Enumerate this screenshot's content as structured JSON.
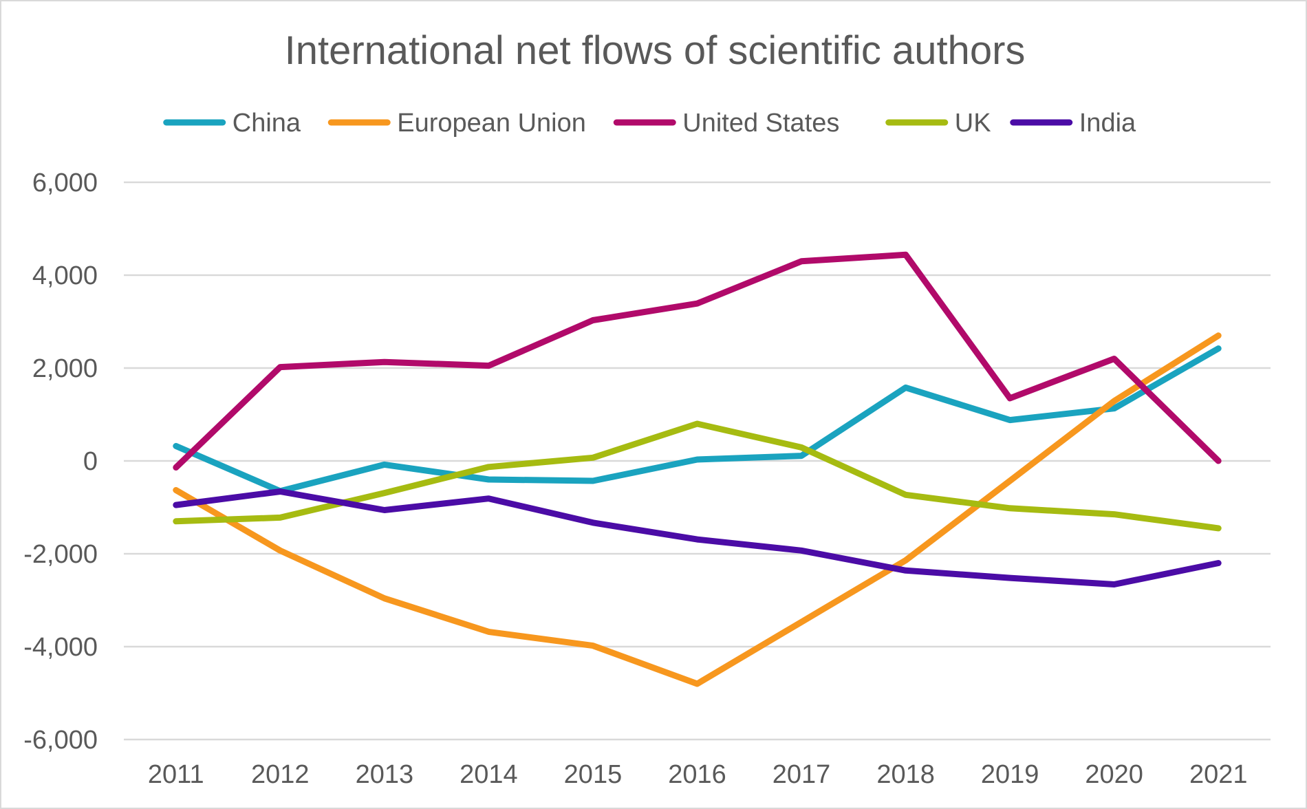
{
  "chart_data": {
    "type": "line",
    "title": "International net flows of scientific authors",
    "xlabel": "",
    "ylabel": "",
    "categories": [
      "2011",
      "2012",
      "2013",
      "2014",
      "2015",
      "2016",
      "2017",
      "2018",
      "2019",
      "2020",
      "2021"
    ],
    "ylim": [
      -6000,
      6000
    ],
    "yticks": [
      6000,
      4000,
      2000,
      0,
      -2000,
      -4000,
      -6000
    ],
    "ytick_labels": [
      "6,000",
      "4,000",
      "2,000",
      "0",
      "-2,000",
      "-4,000",
      "-6,000"
    ],
    "grid": true,
    "legend_position": "top",
    "series": [
      {
        "name": "China",
        "color": "#1AA3BF",
        "values": [
          320,
          -650,
          -80,
          -400,
          -430,
          30,
          110,
          1580,
          880,
          1130,
          2420
        ]
      },
      {
        "name": "European Union",
        "color": "#F7971E",
        "values": [
          -630,
          -1930,
          -2960,
          -3680,
          -3980,
          -4800,
          -3470,
          -2140,
          -430,
          1290,
          2700
        ]
      },
      {
        "name": "United States",
        "color": "#B10A6A",
        "values": [
          -140,
          2020,
          2130,
          2050,
          3030,
          3390,
          4300,
          4440,
          1350,
          2200,
          0
        ]
      },
      {
        "name": "UK",
        "color": "#A6BB11",
        "values": [
          -1300,
          -1220,
          -690,
          -130,
          70,
          800,
          290,
          -730,
          -1020,
          -1150,
          -1450
        ]
      },
      {
        "name": "India",
        "color": "#4B0CA6",
        "values": [
          -950,
          -660,
          -1060,
          -810,
          -1330,
          -1690,
          -1930,
          -2360,
          -2520,
          -2660,
          -2200
        ]
      }
    ]
  }
}
